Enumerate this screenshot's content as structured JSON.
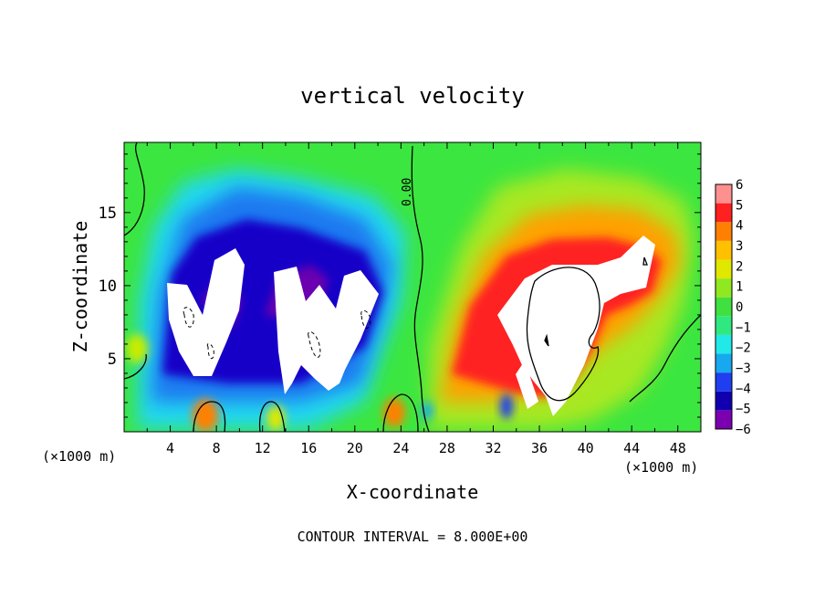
{
  "chart_data": {
    "type": "heatmap",
    "title": "vertical velocity",
    "xlabel": "X-coordinate",
    "ylabel": "Z-coordinate",
    "x_unit": "(×1000 m)",
    "x_ticks": [
      4,
      8,
      12,
      16,
      20,
      24,
      28,
      32,
      36,
      40,
      44,
      48
    ],
    "y_ticks": [
      5,
      10,
      15
    ],
    "xlim": [
      0,
      50
    ],
    "ylim": [
      0,
      19.8
    ],
    "contour_label": "0.00",
    "footer": "CONTOUR INTERVAL = 8.000E+00",
    "colorbar": {
      "ticks": [
        "6",
        "5",
        "4",
        "3",
        "2",
        "1",
        "0",
        "-1",
        "-2",
        "-3",
        "-4",
        "-5",
        "-6"
      ],
      "range": [
        -6,
        6
      ],
      "colors": [
        "#7a00b0",
        "#1000b0",
        "#1e3ef0",
        "#18a8f0",
        "#22e8e8",
        "#30e880",
        "#40e040",
        "#90e820",
        "#e0e800",
        "#ffc000",
        "#ff8000",
        "#ff2020",
        "#ff9090"
      ]
    },
    "features": [
      {
        "sign": "downdraft",
        "x": 7.5,
        "z": 8,
        "value_range": [
          -8,
          -6
        ]
      },
      {
        "sign": "downdraft",
        "x": 15,
        "z": 8,
        "value_range": [
          -8,
          -6
        ]
      },
      {
        "sign": "updraft",
        "x": 38,
        "z": 8,
        "value_range": [
          6,
          10
        ]
      }
    ]
  }
}
